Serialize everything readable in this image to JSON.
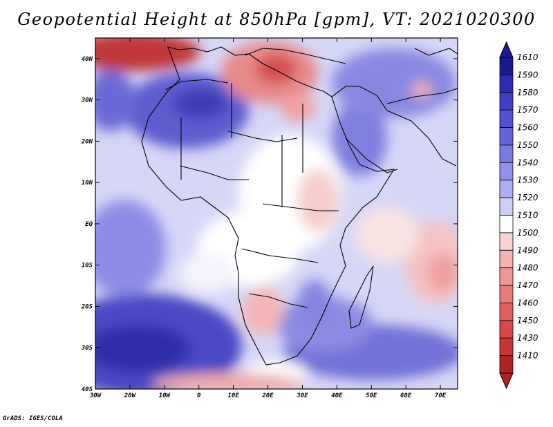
{
  "title": "Geopotential Height at 850hPa [gpm], VT: 2021020300",
  "credit": "GrADS: IGES/COLA",
  "map": {
    "lon_range": [
      -30,
      75
    ],
    "lat_range": [
      -40,
      45
    ],
    "lat_labels": [
      "40N",
      "30N",
      "20N",
      "10N",
      "EQ",
      "10S",
      "20S",
      "30S",
      "40S"
    ],
    "lat_values": [
      40,
      30,
      20,
      10,
      0,
      -10,
      -20,
      -30,
      -40
    ],
    "lon_labels": [
      "30W",
      "20W",
      "10W",
      "0",
      "10E",
      "20E",
      "30E",
      "40E",
      "50E",
      "60E",
      "70E"
    ],
    "lon_values": [
      -30,
      -20,
      -10,
      0,
      10,
      20,
      30,
      40,
      50,
      60,
      70
    ]
  },
  "colorbar": {
    "levels": [
      "1610",
      "1590",
      "1580",
      "1570",
      "1560",
      "1550",
      "1540",
      "1530",
      "1520",
      "1510",
      "1500",
      "1490",
      "1480",
      "1470",
      "1460",
      "1450",
      "1430",
      "1410"
    ],
    "colors": [
      "#1a1a8c",
      "#2b2bb3",
      "#3f3fc8",
      "#5252d2",
      "#6565db",
      "#7a7ae2",
      "#9191e9",
      "#adadf1",
      "#cdcdf7",
      "#ffffff",
      "#f9d3d3",
      "#f4b3b3",
      "#ef9696",
      "#ea7b7b",
      "#e35f5f",
      "#d84848",
      "#c83434",
      "#b12222"
    ]
  },
  "palette": {
    "deep_blue": "#3636b4",
    "blue": "#6f6fdc",
    "light_blue": "#b9b9f2",
    "pale_blue": "#d9d9f8",
    "pale_red": "#f7d3d3",
    "red": "#e58383",
    "deep_red": "#b52626",
    "coast": "#000000"
  }
}
